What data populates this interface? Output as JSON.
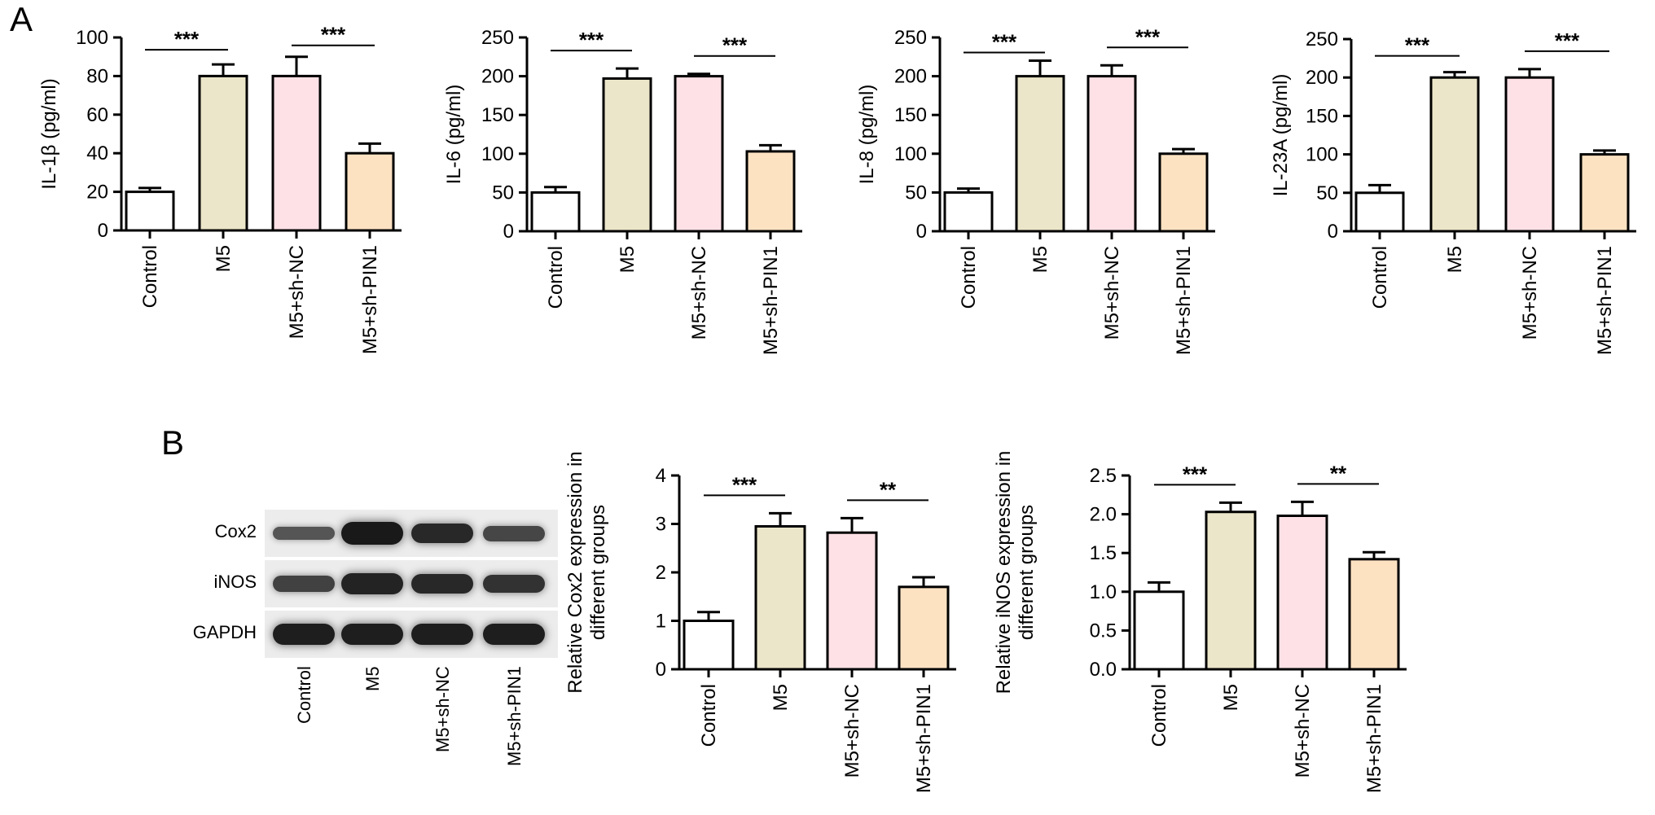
{
  "panels": {
    "A": "A",
    "B": "B"
  },
  "colors": {
    "control": "#ffffff",
    "m5": "#ebe6c9",
    "m5_sh_nc": "#fde1e6",
    "m5_sh_pin1": "#fde2c2",
    "stroke": "#000000"
  },
  "chart_data": [
    {
      "id": "il1b",
      "type": "bar",
      "categories": [
        "Control",
        "M5",
        "M5+sh-NC",
        "M5+sh-PIN1"
      ],
      "values": [
        20,
        80,
        80,
        40
      ],
      "errors": [
        2,
        6,
        10,
        5
      ],
      "ylabel": "IL-1β (pg/ml)",
      "ylim": [
        0,
        100
      ],
      "yticks": [
        "0",
        "20",
        "40",
        "60",
        "80",
        "100"
      ],
      "significance": [
        {
          "from": 0,
          "to": 1,
          "label": "***"
        },
        {
          "from": 2,
          "to": 3,
          "label": "***"
        }
      ]
    },
    {
      "id": "il6",
      "type": "bar",
      "categories": [
        "Control",
        "M5",
        "M5+sh-NC",
        "M5+sh-PIN1"
      ],
      "values": [
        50,
        197,
        200,
        103
      ],
      "errors": [
        7,
        13,
        3,
        8
      ],
      "ylabel": "IL-6 (pg/ml)",
      "ylim": [
        0,
        250
      ],
      "yticks": [
        "0",
        "50",
        "100",
        "150",
        "200",
        "250"
      ],
      "significance": [
        {
          "from": 0,
          "to": 1,
          "label": "***"
        },
        {
          "from": 2,
          "to": 3,
          "label": "***"
        }
      ]
    },
    {
      "id": "il8",
      "type": "bar",
      "categories": [
        "Control",
        "M5",
        "M5+sh-NC",
        "M5+sh-PIN1"
      ],
      "values": [
        50,
        200,
        200,
        100
      ],
      "errors": [
        5,
        20,
        14,
        6
      ],
      "ylabel": "IL-8 (pg/ml)",
      "ylim": [
        0,
        250
      ],
      "yticks": [
        "0",
        "50",
        "100",
        "150",
        "200",
        "250"
      ],
      "significance": [
        {
          "from": 0,
          "to": 1,
          "label": "***"
        },
        {
          "from": 2,
          "to": 3,
          "label": "***"
        }
      ]
    },
    {
      "id": "il23a",
      "type": "bar",
      "categories": [
        "Control",
        "M5",
        "M5+sh-NC",
        "M5+sh-PIN1"
      ],
      "values": [
        50,
        200,
        200,
        100
      ],
      "errors": [
        10,
        7,
        11,
        5
      ],
      "ylabel": "IL-23A (pg/ml)",
      "ylim": [
        0,
        250
      ],
      "yticks": [
        "0",
        "50",
        "100",
        "150",
        "200",
        "250"
      ],
      "significance": [
        {
          "from": 0,
          "to": 1,
          "label": "***"
        },
        {
          "from": 2,
          "to": 3,
          "label": "***"
        }
      ]
    },
    {
      "id": "cox2",
      "type": "bar",
      "categories": [
        "Control",
        "M5",
        "M5+sh-NC",
        "M5+sh-PIN1"
      ],
      "values": [
        1.0,
        2.95,
        2.82,
        1.7
      ],
      "errors": [
        0.18,
        0.27,
        0.3,
        0.2
      ],
      "ylabel": "Relative Cox2 expression in\ndifferent groups",
      "ylim": [
        0,
        4
      ],
      "yticks": [
        "0",
        "1",
        "2",
        "3",
        "4"
      ],
      "significance": [
        {
          "from": 0,
          "to": 1,
          "label": "***"
        },
        {
          "from": 2,
          "to": 3,
          "label": "**"
        }
      ]
    },
    {
      "id": "inos",
      "type": "bar",
      "categories": [
        "Control",
        "M5",
        "M5+sh-NC",
        "M5+sh-PIN1"
      ],
      "values": [
        1.0,
        2.03,
        1.98,
        1.42
      ],
      "errors": [
        0.12,
        0.12,
        0.18,
        0.09
      ],
      "ylabel": "Relative iNOS expression in\ndifferent groups",
      "ylim": [
        0,
        2.5
      ],
      "yticks": [
        "0.0",
        "0.5",
        "1.0",
        "1.5",
        "2.0",
        "2.5"
      ],
      "significance": [
        {
          "from": 0,
          "to": 1,
          "label": "***"
        },
        {
          "from": 2,
          "to": 3,
          "label": "**"
        }
      ]
    }
  ],
  "western_blot": {
    "rows": [
      "Cox2",
      "iNOS",
      "GAPDH"
    ],
    "lanes": [
      "Control",
      "M5",
      "M5+sh-NC",
      "M5+sh-PIN1"
    ],
    "intensity": [
      [
        0.35,
        0.95,
        0.8,
        0.5
      ],
      [
        0.55,
        0.85,
        0.8,
        0.7
      ],
      [
        0.9,
        0.9,
        0.9,
        0.9
      ]
    ]
  }
}
